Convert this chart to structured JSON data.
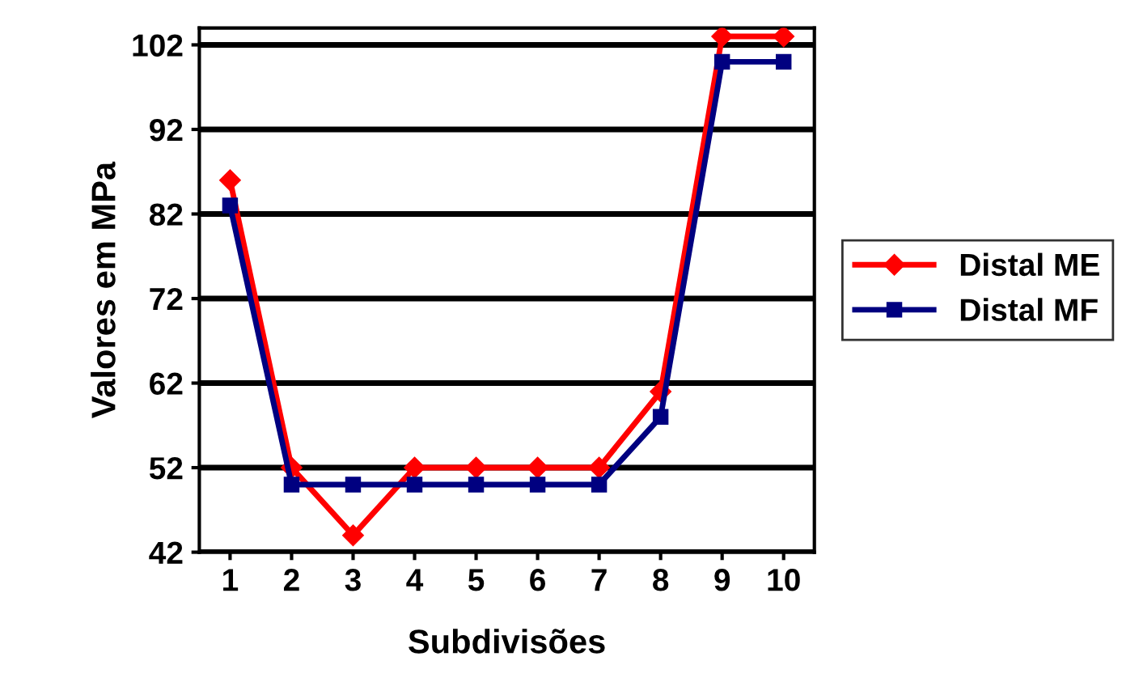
{
  "chart_data": {
    "type": "line",
    "xlabel": "Subdivisões",
    "ylabel": "Valores em MPa",
    "categories": [
      "1",
      "2",
      "3",
      "4",
      "5",
      "6",
      "7",
      "8",
      "9",
      "10"
    ],
    "series": [
      {
        "name": "Distal ME",
        "color": "#ff0000",
        "marker": "diamond",
        "values": [
          86,
          52,
          44,
          52,
          52,
          52,
          52,
          61,
          103,
          103
        ]
      },
      {
        "name": "Distal MF",
        "color": "#000080",
        "marker": "square",
        "values": [
          83,
          50,
          50,
          50,
          50,
          50,
          50,
          58,
          100,
          100
        ]
      }
    ],
    "ylim": [
      42,
      104
    ],
    "yticks": [
      42,
      52,
      62,
      72,
      82,
      92,
      102
    ],
    "grid": "y",
    "legend": "right"
  }
}
